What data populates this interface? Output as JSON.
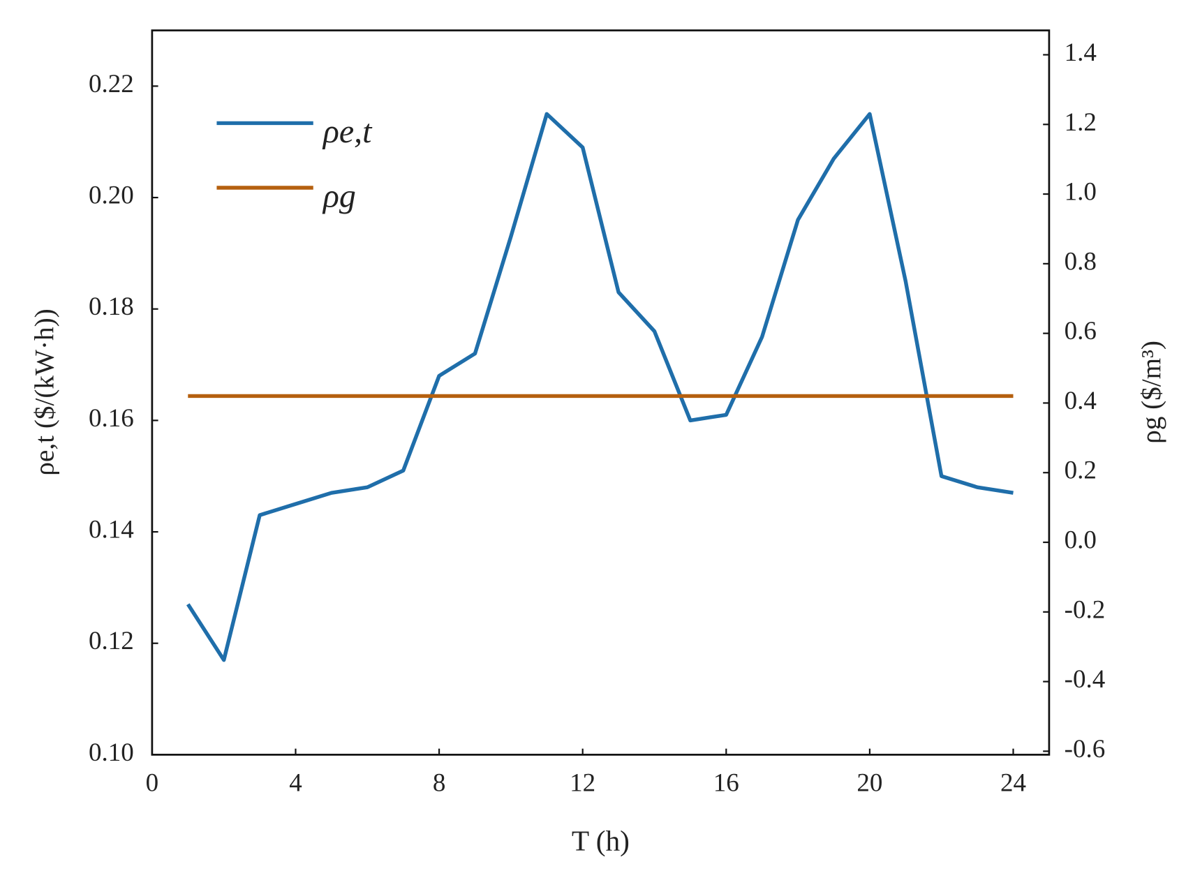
{
  "chart_data": {
    "type": "line",
    "x_label": "T (h)",
    "y_label": "ρe,t ($/(kW·h))",
    "y2_label": "ρg ($/m³)",
    "x": [
      1,
      2,
      3,
      4,
      5,
      6,
      7,
      8,
      9,
      10,
      11,
      12,
      13,
      14,
      15,
      16,
      17,
      18,
      19,
      20,
      21,
      22,
      23,
      24
    ],
    "series": [
      {
        "name": "ρe,t",
        "color": "#1f6eaa",
        "values": [
          0.127,
          0.117,
          0.143,
          0.145,
          0.147,
          0.148,
          0.151,
          0.168,
          0.172,
          0.193,
          0.215,
          0.209,
          0.183,
          0.176,
          0.16,
          0.161,
          0.175,
          0.196,
          0.207,
          0.215,
          0.185,
          0.15,
          0.148,
          0.147
        ]
      },
      {
        "name": "ρg",
        "color": "#b5600f",
        "axis": "y2",
        "values": [
          0.42,
          0.42,
          0.42,
          0.42,
          0.42,
          0.42,
          0.42,
          0.42,
          0.42,
          0.42,
          0.42,
          0.42,
          0.42,
          0.42,
          0.42,
          0.42,
          0.42,
          0.42,
          0.42,
          0.42,
          0.42,
          0.42,
          0.42,
          0.42
        ]
      }
    ],
    "xlim": [
      0,
      25
    ],
    "xticks": [
      0,
      4,
      8,
      12,
      16,
      20,
      24
    ],
    "ylim": [
      0.1,
      0.23
    ],
    "yticks": [
      {
        "value": 0.1,
        "label": "0.10"
      },
      0.12,
      0.14,
      0.16,
      0.18,
      {
        "value": 0.2,
        "label": "0.20"
      },
      0.22
    ],
    "y2lim": [
      -0.61,
      1.47
    ],
    "y2ticks": [
      -0.6,
      -0.4,
      -0.2,
      {
        "value": 0.0,
        "label": "0.0"
      },
      0.2,
      0.4,
      0.6,
      0.8,
      {
        "value": 1.0,
        "label": "1.0"
      },
      1.2,
      1.4
    ],
    "legend": "upper left"
  }
}
